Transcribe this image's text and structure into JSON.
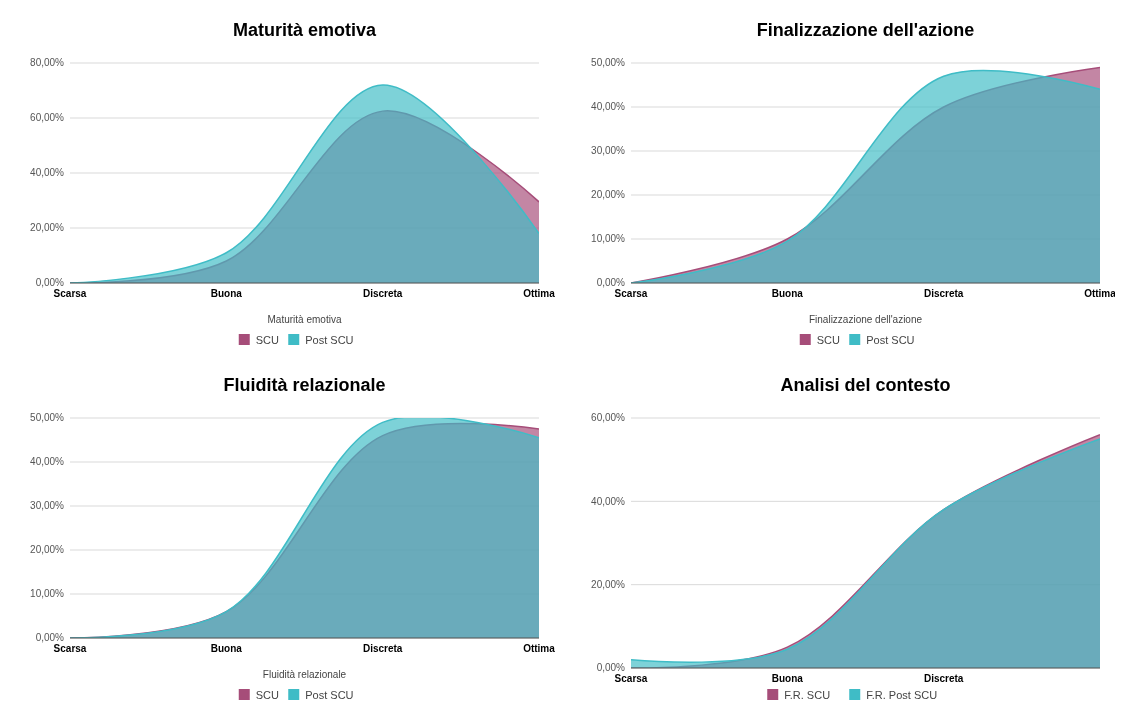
{
  "chart_data": [
    {
      "type": "area",
      "title": "Maturità emotiva",
      "xlabel": "Maturità emotiva",
      "categories": [
        "Scarsa",
        "Buona",
        "Discreta",
        "Ottima"
      ],
      "series": [
        {
          "name": "SCU",
          "color": "#a64d79",
          "values": [
            0,
            8,
            62.5,
            29.5
          ]
        },
        {
          "name": "Post SCU",
          "color": "#3fbcc6",
          "values": [
            0,
            11,
            72,
            18
          ]
        }
      ],
      "ylim": [
        0,
        80
      ],
      "yticks": [
        {
          "value": 0,
          "label": "0,00%"
        },
        {
          "value": 20,
          "label": "20,00%"
        },
        {
          "value": 40,
          "label": "40,00%"
        },
        {
          "value": 60,
          "label": "60,00%"
        },
        {
          "value": 80,
          "label": "80,00%"
        }
      ],
      "grid": "y",
      "legend": "bottom"
    },
    {
      "type": "area",
      "title": "Finalizzazione dell'azione",
      "xlabel": "Finalizzazione dell'azione",
      "categories": [
        "Scarsa",
        "Buona",
        "Discreta",
        "Ottima"
      ],
      "series": [
        {
          "name": "SCU",
          "color": "#a64d79",
          "values": [
            0,
            10,
            40,
            49
          ]
        },
        {
          "name": "Post SCU",
          "color": "#3fbcc6",
          "values": [
            0,
            9.5,
            47,
            44
          ]
        }
      ],
      "ylim": [
        0,
        50
      ],
      "yticks": [
        {
          "value": 0,
          "label": "0,00%"
        },
        {
          "value": 10,
          "label": "10,00%"
        },
        {
          "value": 20,
          "label": "20,00%"
        },
        {
          "value": 30,
          "label": "30,00%"
        },
        {
          "value": 40,
          "label": "40,00%"
        },
        {
          "value": 50,
          "label": "50,00%"
        }
      ],
      "grid": "y",
      "legend": "bottom"
    },
    {
      "type": "area",
      "title": "Fluidità relazionale",
      "xlabel": "Fluidità relazionale",
      "categories": [
        "Scarsa",
        "Buona",
        "Discreta",
        "Ottima"
      ],
      "series": [
        {
          "name": "SCU",
          "color": "#a64d79",
          "values": [
            0,
            6,
            46,
            47.5
          ]
        },
        {
          "name": "Post SCU",
          "color": "#3fbcc6",
          "values": [
            0,
            6,
            49,
            45.5
          ]
        }
      ],
      "ylim": [
        0,
        50
      ],
      "yticks": [
        {
          "value": 0,
          "label": "0,00%"
        },
        {
          "value": 10,
          "label": "10,00%"
        },
        {
          "value": 20,
          "label": "20,00%"
        },
        {
          "value": 30,
          "label": "30,00%"
        },
        {
          "value": 40,
          "label": "40,00%"
        },
        {
          "value": 50,
          "label": "50,00%"
        }
      ],
      "grid": "y",
      "legend": "bottom"
    },
    {
      "type": "area",
      "title": "Analisi del contesto",
      "categories": [
        "Scarsa",
        "Buona",
        "Discreta",
        null
      ],
      "series": [
        {
          "name": "F.R. SCU",
          "color": "#a64d79",
          "values": [
            0,
            5,
            38,
            56
          ]
        },
        {
          "name": "F.R. Post SCU",
          "color": "#3fbcc6",
          "values": [
            2,
            4.5,
            38,
            55
          ]
        }
      ],
      "ylim": [
        0,
        60
      ],
      "yticks": [
        {
          "value": 0,
          "label": "0,00%"
        },
        {
          "value": 20,
          "label": "20,00%"
        },
        {
          "value": 40,
          "label": "40,00%"
        },
        {
          "value": 60,
          "label": "60,00%"
        }
      ],
      "grid": "y",
      "legend": "bottom"
    }
  ]
}
